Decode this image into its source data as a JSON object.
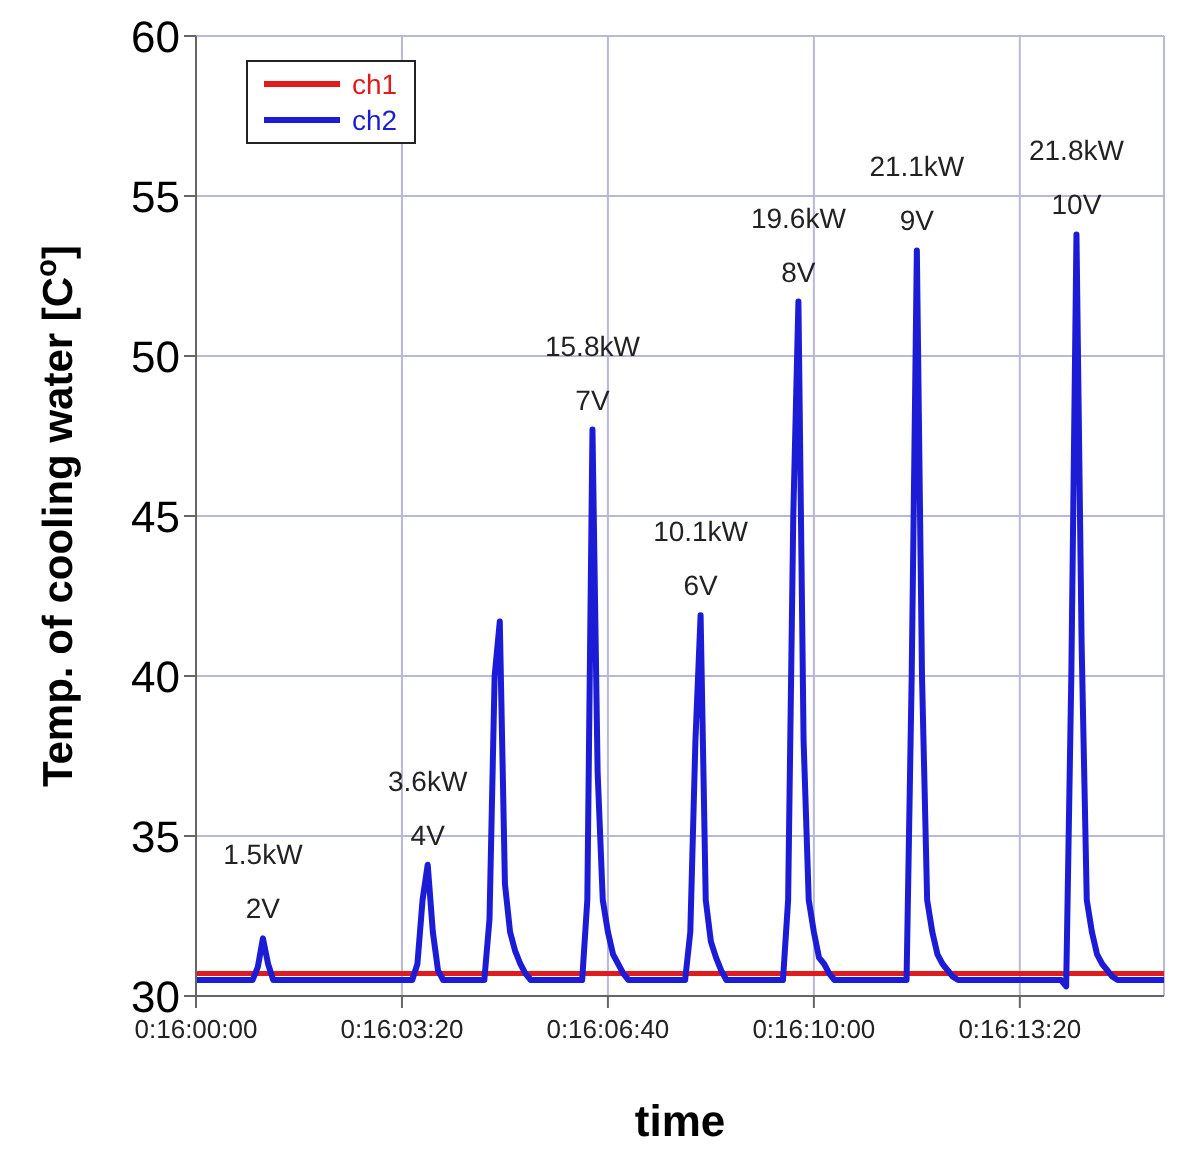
{
  "chart_data": {
    "type": "line",
    "xlabel": "time",
    "ylabel": "Temp. of cooling water  [C$^{o}$]",
    "categories": [
      "0:16:00:00",
      null,
      null,
      null,
      null,
      null,
      null,
      null,
      null,
      null,
      null,
      null,
      null,
      null,
      null,
      null,
      null,
      null,
      null,
      null,
      null,
      null,
      null,
      null,
      null,
      null,
      null,
      null,
      null,
      null,
      null,
      null,
      null,
      null,
      null,
      null,
      null,
      null,
      null,
      null,
      "0:16:03:20",
      null,
      null,
      null,
      null,
      null,
      null,
      null,
      null,
      null,
      null,
      null,
      null,
      null,
      null,
      null,
      null,
      null,
      null,
      null,
      null,
      null,
      null,
      null,
      null,
      null,
      null,
      null,
      null,
      null,
      null,
      null,
      null,
      null,
      null,
      null,
      null,
      null,
      null,
      null,
      "0:16:06:40",
      null,
      null,
      null,
      null,
      null,
      null,
      null,
      null,
      null,
      null,
      null,
      null,
      null,
      null,
      null,
      null,
      null,
      null,
      null,
      null,
      null,
      null,
      null,
      null,
      null,
      null,
      null,
      null,
      null,
      null,
      null,
      null,
      null,
      null,
      null,
      null,
      null,
      null,
      null,
      "0:16:10:00",
      null,
      null,
      null,
      null,
      null,
      null,
      null,
      null,
      null,
      null,
      null,
      null,
      null,
      null,
      null,
      null,
      null,
      null,
      null,
      null,
      null,
      null,
      null,
      null,
      null,
      null,
      null,
      null,
      null,
      null,
      null,
      null,
      null,
      null,
      null,
      null,
      null,
      null,
      null,
      "0:16:13:20",
      null,
      null,
      null,
      null,
      null,
      null,
      null,
      null,
      null,
      null,
      null,
      null,
      null,
      null,
      null,
      null,
      null,
      null,
      null,
      null,
      null,
      null,
      null,
      null,
      null,
      null,
      null,
      null
    ],
    "ylim": [
      30,
      60
    ],
    "yticks": [
      30,
      35,
      40,
      45,
      50,
      55,
      60
    ],
    "grid": true,
    "legend": "top left",
    "marker": "none",
    "line_style": "solid",
    "series": [
      {
        "name": "ch1",
        "color": "#e31a1c",
        "values": [
          30.7,
          30.7,
          30.7,
          30.7,
          30.7,
          30.7,
          30.7,
          30.7,
          30.7,
          30.7,
          30.7,
          30.7,
          30.7,
          30.7,
          30.7,
          30.7,
          30.7,
          30.7,
          30.7,
          30.7,
          30.7,
          30.7,
          30.7,
          30.7,
          30.7,
          30.7,
          30.7,
          30.7,
          30.7,
          30.7,
          30.7,
          30.7,
          30.7,
          30.7,
          30.7,
          30.7,
          30.7,
          30.7,
          30.7,
          30.7,
          30.7,
          30.7,
          30.7,
          30.7,
          30.7,
          30.7,
          30.7,
          30.7,
          30.7,
          30.7,
          30.7,
          30.7,
          30.7,
          30.7,
          30.7,
          30.7,
          30.7,
          30.7,
          30.7,
          30.7,
          30.7,
          30.7,
          30.7,
          30.7,
          30.7,
          30.7,
          30.7,
          30.7,
          30.7,
          30.7,
          30.7,
          30.7,
          30.7,
          30.7,
          30.7,
          30.7,
          30.7,
          30.7,
          30.7,
          30.7,
          30.7,
          30.7,
          30.7,
          30.7,
          30.7,
          30.7,
          30.7,
          30.7,
          30.7,
          30.7,
          30.7,
          30.7,
          30.7,
          30.7,
          30.7,
          30.7,
          30.7,
          30.7,
          30.7,
          30.7,
          30.7,
          30.7,
          30.7,
          30.7,
          30.7,
          30.7,
          30.7,
          30.7,
          30.7,
          30.7,
          30.7,
          30.7,
          30.7,
          30.7,
          30.7,
          30.7,
          30.7,
          30.7,
          30.7,
          30.7,
          30.7,
          30.7,
          30.7,
          30.7,
          30.7,
          30.7,
          30.7,
          30.7,
          30.7,
          30.7,
          30.7,
          30.7,
          30.7,
          30.7,
          30.7,
          30.7,
          30.7,
          30.7,
          30.7,
          30.7,
          30.7,
          30.7,
          30.7,
          30.7,
          30.7,
          30.7,
          30.7,
          30.7,
          30.7,
          30.7,
          30.7,
          30.7,
          30.7,
          30.7,
          30.7,
          30.7,
          30.7,
          30.7,
          30.7,
          30.7,
          30.7,
          30.7,
          30.7,
          30.7,
          30.7,
          30.7,
          30.7,
          30.7,
          30.7,
          30.7,
          30.7,
          30.7,
          30.7,
          30.7,
          30.7,
          30.7,
          30.7,
          30.7,
          30.7,
          30.7,
          30.7,
          30.7,
          30.7,
          30.7,
          30.7,
          30.7,
          30.7,
          30.7,
          30.7
        ]
      },
      {
        "name": "ch2",
        "color": "#1c1cd6",
        "values": [
          30.5,
          30.5,
          30.5,
          30.5,
          30.5,
          30.5,
          30.5,
          30.5,
          30.5,
          30.5,
          30.5,
          30.5,
          30.9,
          31.8,
          31.0,
          30.5,
          30.5,
          30.5,
          30.5,
          30.5,
          30.5,
          30.5,
          30.5,
          30.5,
          30.5,
          30.5,
          30.5,
          30.5,
          30.5,
          30.5,
          30.5,
          30.5,
          30.5,
          30.5,
          30.5,
          30.5,
          30.5,
          30.5,
          30.5,
          30.5,
          30.5,
          30.5,
          30.5,
          31.0,
          33.0,
          34.1,
          32.0,
          30.8,
          30.5,
          30.5,
          30.5,
          30.5,
          30.5,
          30.5,
          30.5,
          30.5,
          30.5,
          32.4,
          40.0,
          41.7,
          33.5,
          32.0,
          31.4,
          31.0,
          30.7,
          30.5,
          30.5,
          30.5,
          30.5,
          30.5,
          30.5,
          30.5,
          30.5,
          30.5,
          30.5,
          30.5,
          33,
          47.7,
          37,
          33,
          32,
          31.3,
          31.0,
          30.7,
          30.5,
          30.5,
          30.5,
          30.5,
          30.5,
          30.5,
          30.5,
          30.5,
          30.5,
          30.5,
          30.5,
          30.5,
          32,
          38,
          41.9,
          33,
          31.7,
          31.2,
          30.8,
          30.5,
          30.5,
          30.5,
          30.5,
          30.5,
          30.5,
          30.5,
          30.5,
          30.5,
          30.5,
          30.5,
          30.5,
          33,
          45,
          51.7,
          38,
          33,
          32,
          31.2,
          31.0,
          30.7,
          30.5,
          30.5,
          30.5,
          30.5,
          30.5,
          30.5,
          30.5,
          30.5,
          30.5,
          30.5,
          30.5,
          30.5,
          30.5,
          30.5,
          30.5,
          40,
          53.3,
          40,
          33,
          32,
          31.3,
          31.0,
          30.8,
          30.6,
          30.5,
          30.5,
          30.5,
          30.5,
          30.5,
          30.5,
          30.5,
          30.5,
          30.5,
          30.5,
          30.5,
          30.5,
          30.5,
          30.5,
          30.5,
          30.5,
          30.5,
          30.5,
          30.5,
          30.5,
          30.5,
          30.3,
          40,
          53.8,
          41,
          33,
          32,
          31.3,
          31.0,
          30.8,
          30.6,
          30.5,
          30.5,
          30.5,
          30.5,
          30.5,
          30.5,
          30.5,
          30.5,
          30.5,
          30.5
        ]
      }
    ],
    "annotations": [
      {
        "text": "1.5kW",
        "y": 31.8
      },
      {
        "text": "2V",
        "y": 31.8
      },
      {
        "text": "3.6kW",
        "y": 34.1
      },
      {
        "text": "4V",
        "y": 34.1
      },
      {
        "text": "15.8kW",
        "y": 47.7
      },
      {
        "text": "7V",
        "y": 47.7
      },
      {
        "text": "10.1kW",
        "y": 41.9
      },
      {
        "text": "6V",
        "y": 41.9
      },
      {
        "text": "19.6kW",
        "y": 51.7
      },
      {
        "text": "8V",
        "y": 51.7
      },
      {
        "text": "21.1kW",
        "y": 53.3
      },
      {
        "text": "9V",
        "y": 53.3
      },
      {
        "text": "21.8kW",
        "y": 53.8
      },
      {
        "text": "10V",
        "y": 53.8
      }
    ]
  }
}
